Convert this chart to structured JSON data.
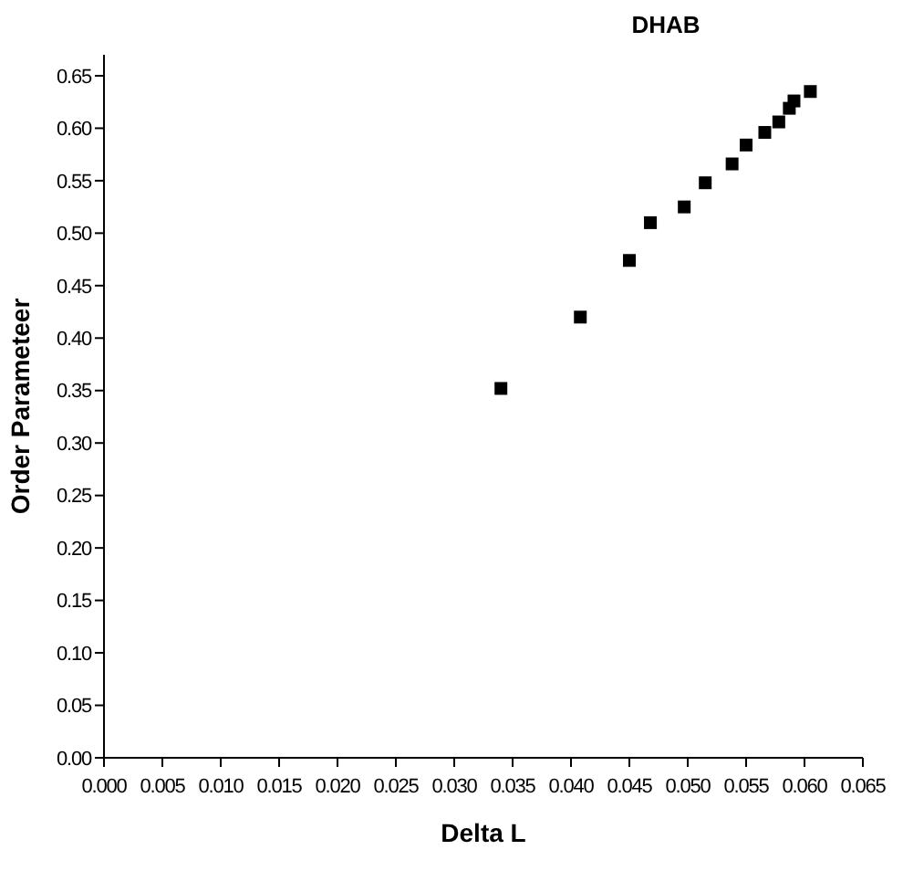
{
  "chart_data": {
    "type": "scatter",
    "title": "DHAB",
    "xlabel": "Delta L",
    "ylabel": "Order Parameteer",
    "marker": "square",
    "grid": false,
    "xlim": [
      0,
      0.065
    ],
    "xticks": [
      {
        "value": 0,
        "label": "0.000"
      },
      0.005,
      {
        "value": 0.01,
        "label": "0.010"
      },
      0.015,
      {
        "value": 0.02,
        "label": "0.020"
      },
      0.025,
      {
        "value": 0.03,
        "label": "0.030"
      },
      0.035,
      {
        "value": 0.04,
        "label": "0.040"
      },
      0.045,
      {
        "value": 0.05,
        "label": "0.050"
      },
      0.055,
      {
        "value": 0.06,
        "label": "0.060"
      },
      0.065
    ],
    "ylim": [
      0,
      0.67
    ],
    "yticks": [
      {
        "value": 0,
        "label": "0.00"
      },
      0.05,
      {
        "value": 0.1,
        "label": "0.10"
      },
      0.15,
      {
        "value": 0.2,
        "label": "0.20"
      },
      0.25,
      {
        "value": 0.3,
        "label": "0.30"
      },
      0.35,
      {
        "value": 0.4,
        "label": "0.40"
      },
      0.45,
      {
        "value": 0.5,
        "label": "0.50"
      },
      0.55,
      {
        "value": 0.6,
        "label": "0.60"
      },
      0.65
    ],
    "series": [
      {
        "color": "#000000",
        "x": [
          0.034,
          0.0408,
          0.045,
          0.0468,
          0.0497,
          0.0515,
          0.0538,
          0.055,
          0.0566,
          0.0578,
          0.0587,
          0.0591,
          0.0605
        ],
        "values": [
          0.352,
          0.42,
          0.474,
          0.51,
          0.525,
          0.548,
          0.566,
          0.584,
          0.596,
          0.606,
          0.619,
          0.626,
          0.635
        ]
      }
    ]
  }
}
